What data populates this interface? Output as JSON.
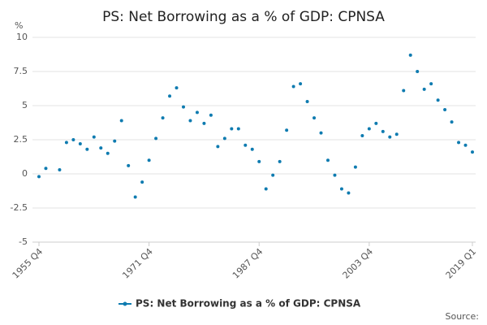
{
  "chart_data": {
    "type": "scatter",
    "title": "PS: Net Borrowing as a % of GDP: CPNSA",
    "y_label": "%",
    "source": "Source:",
    "categories": [
      "1955 Q4",
      null,
      null,
      null,
      null,
      null,
      null,
      null,
      null,
      null,
      null,
      null,
      null,
      null,
      null,
      null,
      "1971 Q4",
      null,
      null,
      null,
      null,
      null,
      null,
      null,
      null,
      null,
      null,
      null,
      null,
      null,
      null,
      null,
      "1987 Q4",
      null,
      null,
      null,
      null,
      null,
      null,
      null,
      null,
      null,
      null,
      null,
      null,
      null,
      null,
      null,
      "2003 Q4",
      null,
      null,
      null,
      null,
      null,
      null,
      null,
      null,
      null,
      null,
      null,
      null,
      null,
      null,
      "2019 Q1"
    ],
    "series": [
      {
        "name": "PS: Net Borrowing as a % of GDP: CPNSA",
        "color": "#0e7bb0",
        "values": [
          -0.2,
          0.4,
          null,
          0.3,
          2.3,
          2.5,
          2.2,
          1.8,
          2.7,
          1.9,
          1.5,
          2.4,
          3.9,
          0.6,
          -1.7,
          -0.6,
          1.0,
          2.6,
          4.1,
          5.7,
          6.3,
          4.9,
          3.9,
          4.5,
          3.7,
          4.3,
          2.0,
          2.6,
          3.3,
          3.3,
          2.1,
          1.8,
          0.9,
          -1.1,
          -0.1,
          0.9,
          3.2,
          6.4,
          6.6,
          5.3,
          4.1,
          3.0,
          1.0,
          -0.1,
          -1.1,
          -1.4,
          0.5,
          2.8,
          3.3,
          3.7,
          3.1,
          2.7,
          2.9,
          6.1,
          8.7,
          7.5,
          6.2,
          6.6,
          5.4,
          4.7,
          3.8,
          2.3,
          2.1,
          1.6
        ]
      }
    ],
    "ylim": [
      -5,
      10
    ],
    "yticks": [
      -5,
      -2.5,
      0,
      2.5,
      5,
      7.5,
      10
    ],
    "grid": true,
    "legend": "bottom"
  }
}
